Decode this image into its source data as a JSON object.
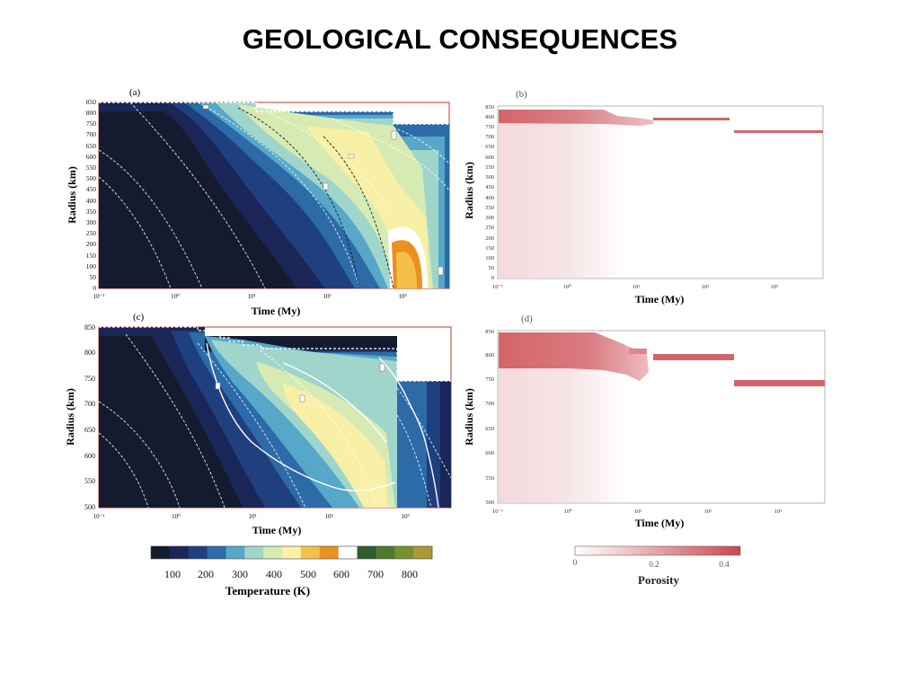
{
  "slide": {
    "title": "GEOLOGICAL CONSEQUENCES"
  },
  "colors": {
    "frame": "#c0392b",
    "porosity_high": "#c9474e",
    "porosity_low": "#f6e3e4",
    "temperature_scale": [
      "#151b2e",
      "#1a2657",
      "#1f3f7e",
      "#2c6aa8",
      "#57a7c9",
      "#9fd5cb",
      "#d6ebb3",
      "#f7f0a6",
      "#f5c04a",
      "#e9901f",
      "#ffffff",
      "#2e5d2e",
      "#4f7a2d",
      "#77912f",
      "#a89b33"
    ]
  },
  "chart_data": [
    {
      "id": "a",
      "panel_label": "(a)",
      "type": "heatmap",
      "quantity": "Temperature (K)",
      "xlabel": "Time (My)",
      "ylabel": "Radius (km)",
      "xscale": "log",
      "xlim": [
        0.1,
        5000
      ],
      "xticks": [
        "10⁻¹",
        "10⁰",
        "10¹",
        "10²",
        "10³"
      ],
      "ylim": [
        0,
        850
      ],
      "yticks": [
        0,
        50,
        100,
        150,
        200,
        250,
        300,
        350,
        400,
        450,
        500,
        550,
        600,
        650,
        700,
        750,
        800,
        850
      ],
      "surface_steps": [
        [
          0.1,
          850
        ],
        [
          30,
          850
        ],
        [
          30,
          800
        ],
        [
          700,
          800
        ],
        [
          700,
          740
        ],
        [
          5000,
          740
        ]
      ]
    },
    {
      "id": "b",
      "panel_label": "(b)",
      "type": "heatmap",
      "quantity": "Porosity",
      "xlabel": "Time (My)",
      "ylabel": "Radius (km)",
      "xscale": "log",
      "xlim": [
        0.1,
        5000
      ],
      "xticks": [
        "10⁻¹",
        "10⁰",
        "10¹",
        "10²",
        "10³"
      ],
      "ylim": [
        0,
        850
      ],
      "yticks": [
        0,
        50,
        100,
        150,
        200,
        250,
        300,
        350,
        400,
        450,
        500,
        550,
        600,
        650,
        700,
        750,
        800,
        850
      ],
      "porous_layer": [
        [
          0.1,
          790,
          850,
          0.35
        ],
        [
          3,
          790,
          845,
          0.3
        ],
        [
          12,
          785,
          805,
          0.3
        ],
        [
          15,
          790,
          800,
          0.4
        ],
        [
          250,
          730,
          745,
          0.4
        ]
      ]
    },
    {
      "id": "c",
      "panel_label": "(c)",
      "type": "heatmap",
      "quantity": "Temperature (K)",
      "xlabel": "Time (My)",
      "ylabel": "Radius (km)",
      "xscale": "log",
      "xlim": [
        0.1,
        5000
      ],
      "xticks": [
        "10⁻¹",
        "10⁰",
        "10¹",
        "10²",
        "10³"
      ],
      "ylim": [
        500,
        850
      ],
      "yticks": [
        500,
        550,
        600,
        650,
        700,
        750,
        800,
        850
      ],
      "surface_steps": [
        [
          0.1,
          850
        ],
        [
          20,
          850
        ],
        [
          20,
          805
        ],
        [
          800,
          805
        ],
        [
          800,
          745
        ],
        [
          5000,
          745
        ]
      ]
    },
    {
      "id": "d",
      "panel_label": "(d)",
      "type": "heatmap",
      "quantity": "Porosity",
      "xlabel": "Time (My)",
      "ylabel": "Radius (km)",
      "xscale": "log",
      "xlim": [
        0.1,
        5000
      ],
      "xticks": [
        "10⁻¹",
        "10⁰",
        "10¹",
        "10²",
        "10³"
      ],
      "ylim": [
        500,
        850
      ],
      "yticks": [
        500,
        550,
        600,
        650,
        700,
        750,
        800,
        850
      ],
      "porous_layer": [
        [
          0.1,
          790,
          850,
          0.35
        ],
        [
          3,
          790,
          845,
          0.3
        ],
        [
          12,
          780,
          810,
          0.3
        ],
        [
          18,
          790,
          800,
          0.4
        ],
        [
          250,
          735,
          745,
          0.4
        ]
      ]
    }
  ],
  "colorbars": {
    "temperature": {
      "label": "Temperature (K)",
      "ticks": [
        "100",
        "200",
        "300",
        "400",
        "500",
        "600",
        "700",
        "800"
      ],
      "range": [
        30,
        850
      ]
    },
    "porosity": {
      "label": "Porosity",
      "ticks": [
        "0",
        "0.2",
        "0.4"
      ],
      "range": [
        0,
        0.45
      ]
    }
  }
}
